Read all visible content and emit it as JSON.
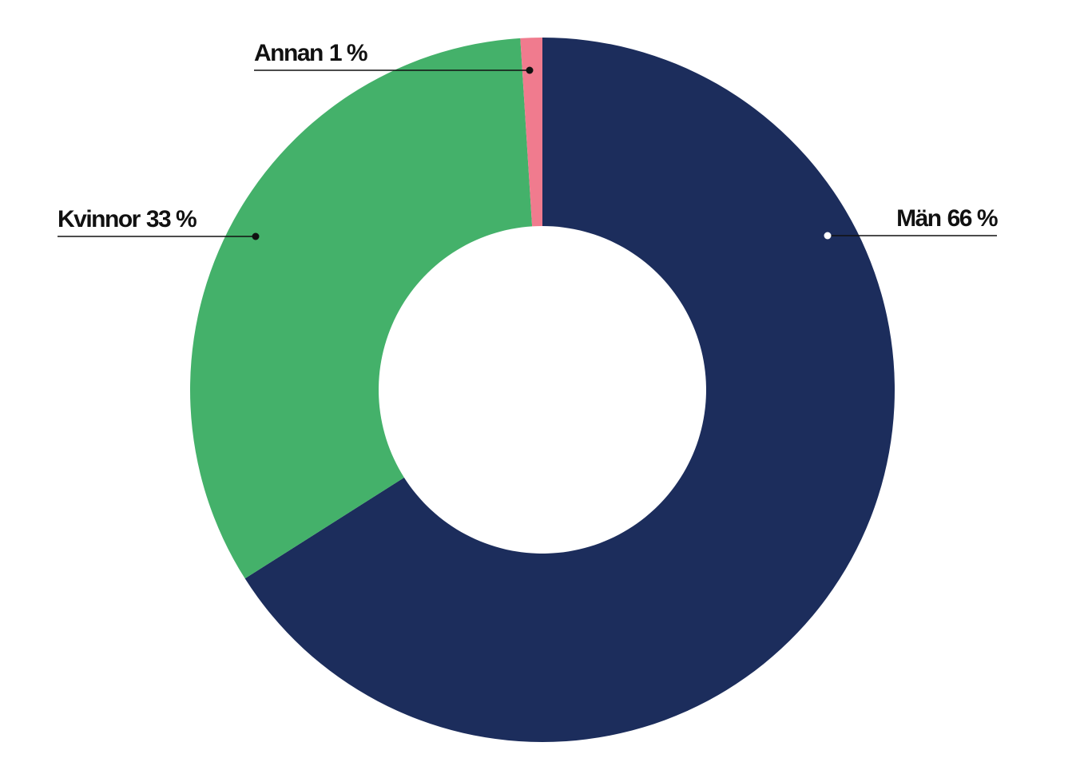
{
  "chart_data": {
    "type": "donut",
    "categories": [
      "Män",
      "Kvinnor",
      "Annan"
    ],
    "values": [
      66,
      33,
      1
    ],
    "value_labels": [
      "66 %",
      "33 %",
      "1 %"
    ],
    "colors": [
      "#1c2d5c",
      "#44b16a",
      "#f07b8e"
    ]
  }
}
